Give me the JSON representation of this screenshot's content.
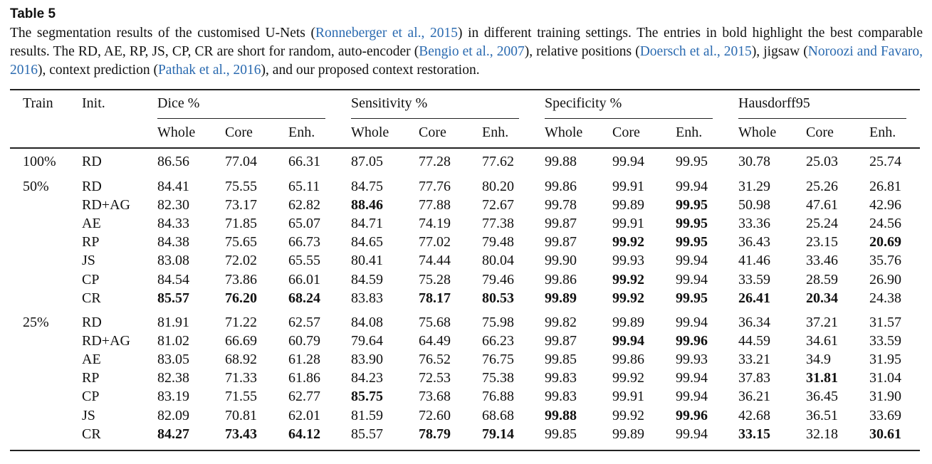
{
  "caption": {
    "title": "Table 5",
    "segments": [
      {
        "t": "The segmentation results of the customised U-Nets ("
      },
      {
        "t": "Ronneberger et al., 2015",
        "cite": true
      },
      {
        "t": ") in different training settings. The entries in bold highlight the best comparable results. The RD, AE, RP, JS, CP, CR are short for random, auto-encoder ("
      },
      {
        "t": "Bengio et al., 2007",
        "cite": true
      },
      {
        "t": "), relative positions ("
      },
      {
        "t": "Doersch et al., 2015",
        "cite": true
      },
      {
        "t": "), jigsaw ("
      },
      {
        "t": "Noroozi and Favaro, 2016",
        "cite": true
      },
      {
        "t": "), context prediction ("
      },
      {
        "t": "Pathak et al., 2016",
        "cite": true
      },
      {
        "t": "), and our proposed context restoration."
      }
    ]
  },
  "table": {
    "header": {
      "train": "Train",
      "init": "Init.",
      "groups": [
        "Dice %",
        "Sensitivity %",
        "Specificity %",
        "Hausdorff95"
      ],
      "sub": [
        "Whole",
        "Core",
        "Enh."
      ]
    },
    "groups": [
      {
        "train": "100%",
        "rows": [
          {
            "init": "RD",
            "v": [
              "86.56",
              "77.04",
              "66.31",
              "87.05",
              "77.28",
              "77.62",
              "99.88",
              "99.94",
              "99.95",
              "30.78",
              "25.03",
              "25.74"
            ],
            "bold": []
          }
        ]
      },
      {
        "train": "50%",
        "rows": [
          {
            "init": "RD",
            "v": [
              "84.41",
              "75.55",
              "65.11",
              "84.75",
              "77.76",
              "80.20",
              "99.86",
              "99.91",
              "99.94",
              "31.29",
              "25.26",
              "26.81"
            ],
            "bold": []
          },
          {
            "init": "RD+AG",
            "v": [
              "82.30",
              "73.17",
              "62.82",
              "88.46",
              "77.88",
              "72.67",
              "99.78",
              "99.89",
              "99.95",
              "50.98",
              "47.61",
              "42.96"
            ],
            "bold": [
              3,
              8
            ]
          },
          {
            "init": "AE",
            "v": [
              "84.33",
              "71.85",
              "65.07",
              "84.71",
              "74.19",
              "77.38",
              "99.87",
              "99.91",
              "99.95",
              "33.36",
              "25.24",
              "24.56"
            ],
            "bold": [
              8
            ]
          },
          {
            "init": "RP",
            "v": [
              "84.38",
              "75.65",
              "66.73",
              "84.65",
              "77.02",
              "79.48",
              "99.87",
              "99.92",
              "99.95",
              "36.43",
              "23.15",
              "20.69"
            ],
            "bold": [
              7,
              8,
              11
            ]
          },
          {
            "init": "JS",
            "v": [
              "83.08",
              "72.02",
              "65.55",
              "80.41",
              "74.44",
              "80.04",
              "99.90",
              "99.93",
              "99.94",
              "41.46",
              "33.46",
              "35.76"
            ],
            "bold": []
          },
          {
            "init": "CP",
            "v": [
              "84.54",
              "73.86",
              "66.01",
              "84.59",
              "75.28",
              "79.46",
              "99.86",
              "99.92",
              "99.94",
              "33.59",
              "28.59",
              "26.90"
            ],
            "bold": [
              7
            ]
          },
          {
            "init": "CR",
            "v": [
              "85.57",
              "76.20",
              "68.24",
              "83.83",
              "78.17",
              "80.53",
              "99.89",
              "99.92",
              "99.95",
              "26.41",
              "20.34",
              "24.38"
            ],
            "bold": [
              0,
              1,
              2,
              4,
              5,
              6,
              7,
              8,
              9,
              10
            ]
          }
        ]
      },
      {
        "train": "25%",
        "rows": [
          {
            "init": "RD",
            "v": [
              "81.91",
              "71.22",
              "62.57",
              "84.08",
              "75.68",
              "75.98",
              "99.82",
              "99.89",
              "99.94",
              "36.34",
              "37.21",
              "31.57"
            ],
            "bold": []
          },
          {
            "init": "RD+AG",
            "v": [
              "81.02",
              "66.69",
              "60.79",
              "79.64",
              "64.49",
              "66.23",
              "99.87",
              "99.94",
              "99.96",
              "44.59",
              "34.61",
              "33.59"
            ],
            "bold": [
              7,
              8
            ]
          },
          {
            "init": "AE",
            "v": [
              "83.05",
              "68.92",
              "61.28",
              "83.90",
              "76.52",
              "76.75",
              "99.85",
              "99.86",
              "99.93",
              "33.21",
              "34.9",
              "31.95"
            ],
            "bold": []
          },
          {
            "init": "RP",
            "v": [
              "82.38",
              "71.33",
              "61.86",
              "84.23",
              "72.53",
              "75.38",
              "99.83",
              "99.92",
              "99.94",
              "37.83",
              "31.81",
              "31.04"
            ],
            "bold": [
              10
            ]
          },
          {
            "init": "CP",
            "v": [
              "83.19",
              "71.55",
              "62.77",
              "85.75",
              "73.68",
              "76.88",
              "99.83",
              "99.91",
              "99.94",
              "36.21",
              "36.45",
              "31.90"
            ],
            "bold": [
              3
            ]
          },
          {
            "init": "JS",
            "v": [
              "82.09",
              "70.81",
              "62.01",
              "81.59",
              "72.60",
              "68.68",
              "99.88",
              "99.92",
              "99.96",
              "42.68",
              "36.51",
              "33.69"
            ],
            "bold": [
              6,
              8
            ]
          },
          {
            "init": "CR",
            "v": [
              "84.27",
              "73.43",
              "64.12",
              "85.57",
              "78.79",
              "79.14",
              "99.85",
              "99.89",
              "99.94",
              "33.15",
              "32.18",
              "30.61"
            ],
            "bold": [
              0,
              1,
              2,
              4,
              5,
              9,
              11
            ]
          }
        ]
      }
    ]
  }
}
